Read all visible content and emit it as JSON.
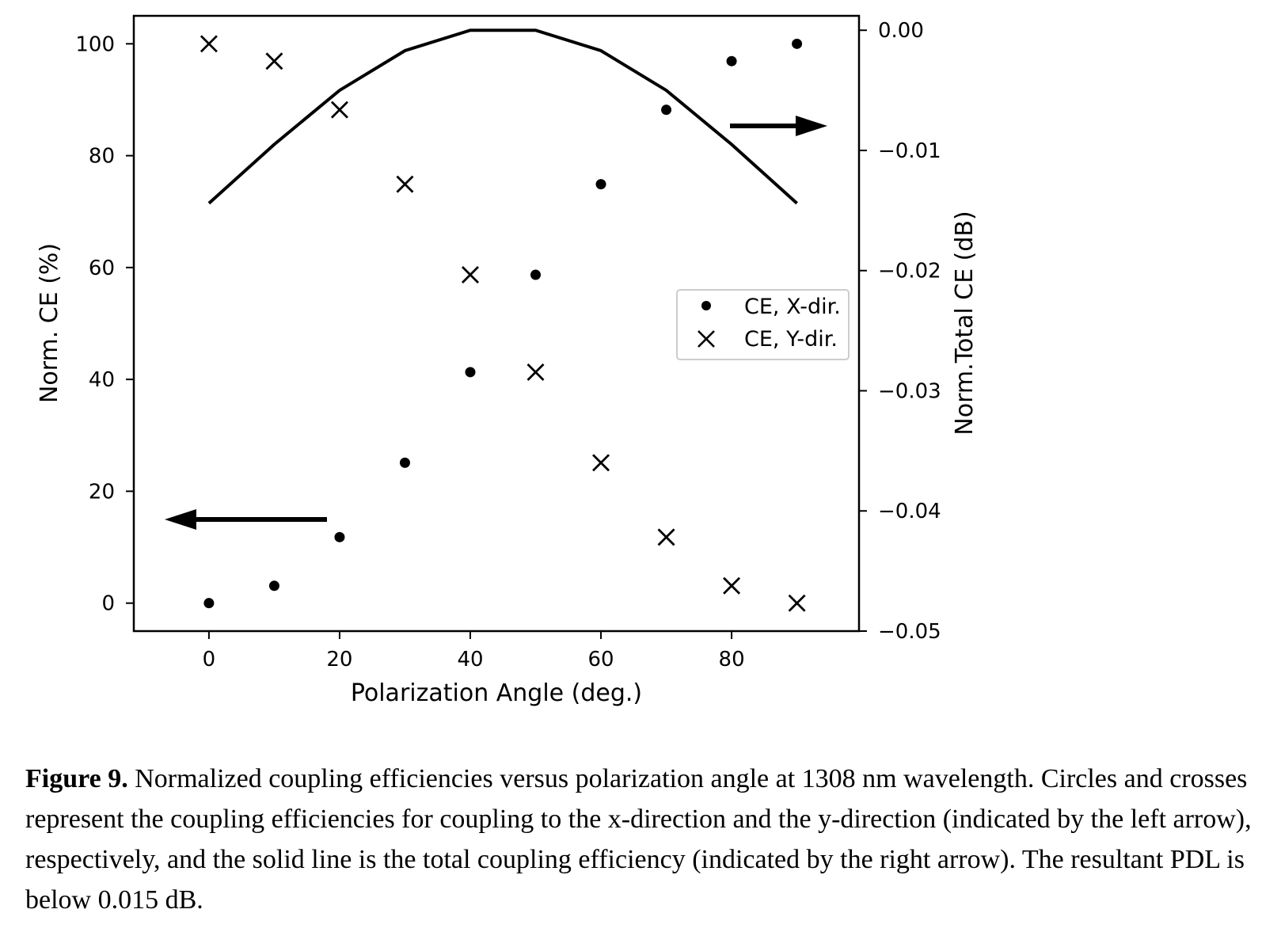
{
  "chart_data": {
    "type": "scatter",
    "x_label": "Polarization Angle (deg.)",
    "y_label_left": "Norm. CE (%)",
    "y_label_right": "Norm.Total CE (dB)",
    "xlim": [
      -11.5,
      99.5
    ],
    "ylim_left": [
      -5,
      105
    ],
    "ylim_right": [
      -0.05,
      0.0012
    ],
    "x_ticks": [
      0,
      20,
      40,
      60,
      80
    ],
    "y_ticks_left": [
      0,
      20,
      40,
      60,
      80,
      100
    ],
    "y_ticks_right": [
      0.0,
      -0.01,
      -0.02,
      -0.03,
      -0.04,
      -0.05
    ],
    "y_tick_labels_right": [
      "0.00",
      "−0.01",
      "−0.02",
      "−0.03",
      "−0.04",
      "−0.05"
    ],
    "grid": false,
    "legend_position": "center-right",
    "series": [
      {
        "name": "CE, X-dir.",
        "marker": "circle",
        "axis": "left",
        "x": [
          0,
          10,
          20,
          30,
          40,
          50,
          60,
          70,
          80,
          90
        ],
        "y": [
          0,
          3.1,
          11.8,
          25.1,
          41.3,
          58.7,
          74.9,
          88.2,
          96.9,
          100
        ]
      },
      {
        "name": "CE, Y-dir.",
        "marker": "x",
        "axis": "left",
        "x": [
          0,
          10,
          20,
          30,
          40,
          50,
          60,
          70,
          80,
          90
        ],
        "y": [
          100,
          96.9,
          88.2,
          74.9,
          58.7,
          41.3,
          25.1,
          11.8,
          3.1,
          0
        ]
      },
      {
        "marker": "line",
        "axis": "right",
        "x": [
          0,
          10,
          20,
          30,
          40,
          50,
          60,
          70,
          80,
          90
        ],
        "y": [
          -0.0144,
          -0.0095,
          -0.005,
          -0.0017,
          0.0,
          0.0,
          -0.0017,
          -0.005,
          -0.0095,
          -0.0144
        ]
      }
    ],
    "annotations": [
      {
        "type": "arrow",
        "direction": "left",
        "refers_to": "left axis"
      },
      {
        "type": "arrow",
        "direction": "right",
        "refers_to": "right axis"
      }
    ]
  },
  "caption": {
    "label": "Figure 9.",
    "text": " Normalized coupling efficiencies versus polarization angle at 1308 nm wavelength. Circles and crosses represent the coupling efficiencies for coupling to the x-direction and the y-direction (indicated by the left arrow), respectively, and the solid line is the total coupling efficiency (indicated by the right arrow). The resultant PDL is below 0.015 dB."
  }
}
